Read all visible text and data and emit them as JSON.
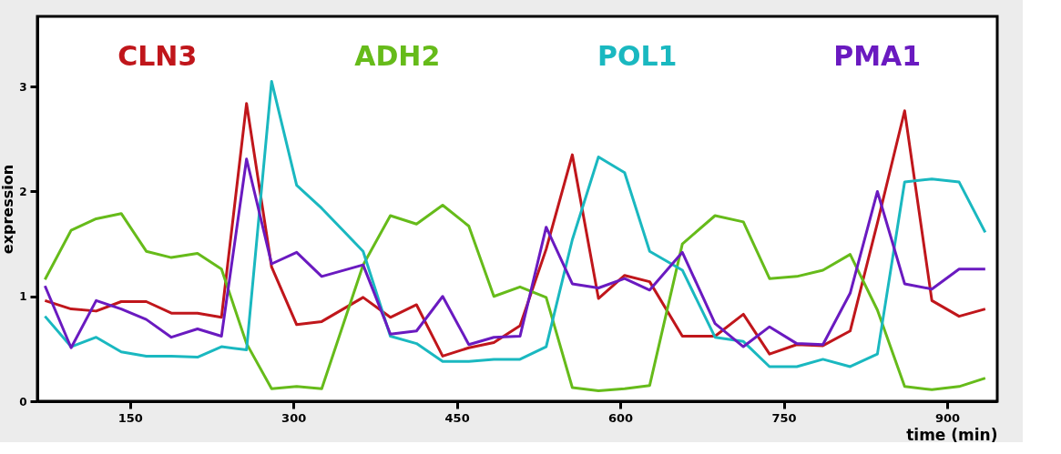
{
  "chart_data": {
    "type": "line",
    "xlabel": "time (min)",
    "ylabel": "expression",
    "x": [
      72,
      96,
      119,
      142,
      165,
      188,
      212,
      234,
      257,
      280,
      303,
      326,
      364,
      389,
      413,
      437,
      461,
      484,
      508,
      532,
      556,
      580,
      604,
      627,
      657,
      687,
      713,
      737,
      762,
      786,
      811,
      836,
      861,
      886,
      911,
      935
    ],
    "series": [
      {
        "name": "CLN3",
        "color": "#c0161b",
        "values": [
          0.96,
          0.88,
          0.86,
          0.95,
          0.95,
          0.84,
          0.84,
          0.8,
          2.84,
          1.28,
          0.73,
          0.76,
          0.99,
          0.8,
          0.92,
          0.43,
          0.51,
          0.56,
          0.72,
          1.45,
          2.35,
          0.98,
          1.2,
          1.14,
          0.62,
          0.62,
          0.83,
          0.45,
          0.54,
          0.53,
          0.67,
          1.7,
          2.77,
          0.96,
          0.81,
          0.88
        ]
      },
      {
        "name": "ADH2",
        "color": "#66bb1a",
        "values": [
          1.16,
          1.63,
          1.74,
          1.79,
          1.43,
          1.37,
          1.41,
          1.26,
          0.55,
          0.12,
          0.14,
          0.12,
          1.3,
          1.77,
          1.69,
          1.87,
          1.67,
          1.0,
          1.09,
          0.99,
          0.13,
          0.1,
          0.12,
          0.15,
          1.5,
          1.77,
          1.71,
          1.17,
          1.19,
          1.25,
          1.4,
          0.87,
          0.14,
          0.11,
          0.14,
          0.22
        ]
      },
      {
        "name": "POL1",
        "color": "#1ab8c0",
        "values": [
          0.81,
          0.52,
          0.61,
          0.47,
          0.43,
          0.43,
          0.42,
          0.52,
          0.49,
          3.05,
          2.06,
          1.84,
          1.43,
          0.62,
          0.55,
          0.38,
          0.38,
          0.4,
          0.4,
          0.52,
          1.54,
          2.33,
          2.18,
          1.43,
          1.25,
          0.61,
          0.57,
          0.33,
          0.33,
          0.4,
          0.33,
          0.45,
          2.09,
          2.12,
          2.09,
          1.61
        ]
      },
      {
        "name": "PMA1",
        "color": "#6a1ac0",
        "values": [
          1.1,
          0.51,
          0.96,
          0.88,
          0.78,
          0.61,
          0.69,
          0.62,
          2.31,
          1.31,
          1.42,
          1.19,
          1.3,
          0.64,
          0.67,
          1.0,
          0.54,
          0.61,
          0.62,
          1.66,
          1.12,
          1.08,
          1.17,
          1.06,
          1.42,
          0.74,
          0.52,
          0.71,
          0.55,
          0.54,
          1.03,
          2.0,
          1.12,
          1.07,
          1.26,
          1.26
        ]
      }
    ],
    "xlim": [
      65,
      946
    ],
    "ylim": [
      0,
      3.67
    ],
    "xticks": [
      150,
      300,
      450,
      600,
      750,
      900
    ],
    "yticks": [
      0,
      1,
      2,
      3
    ],
    "grid": false,
    "legend": "top",
    "line_style": "solid",
    "marker": "none"
  }
}
